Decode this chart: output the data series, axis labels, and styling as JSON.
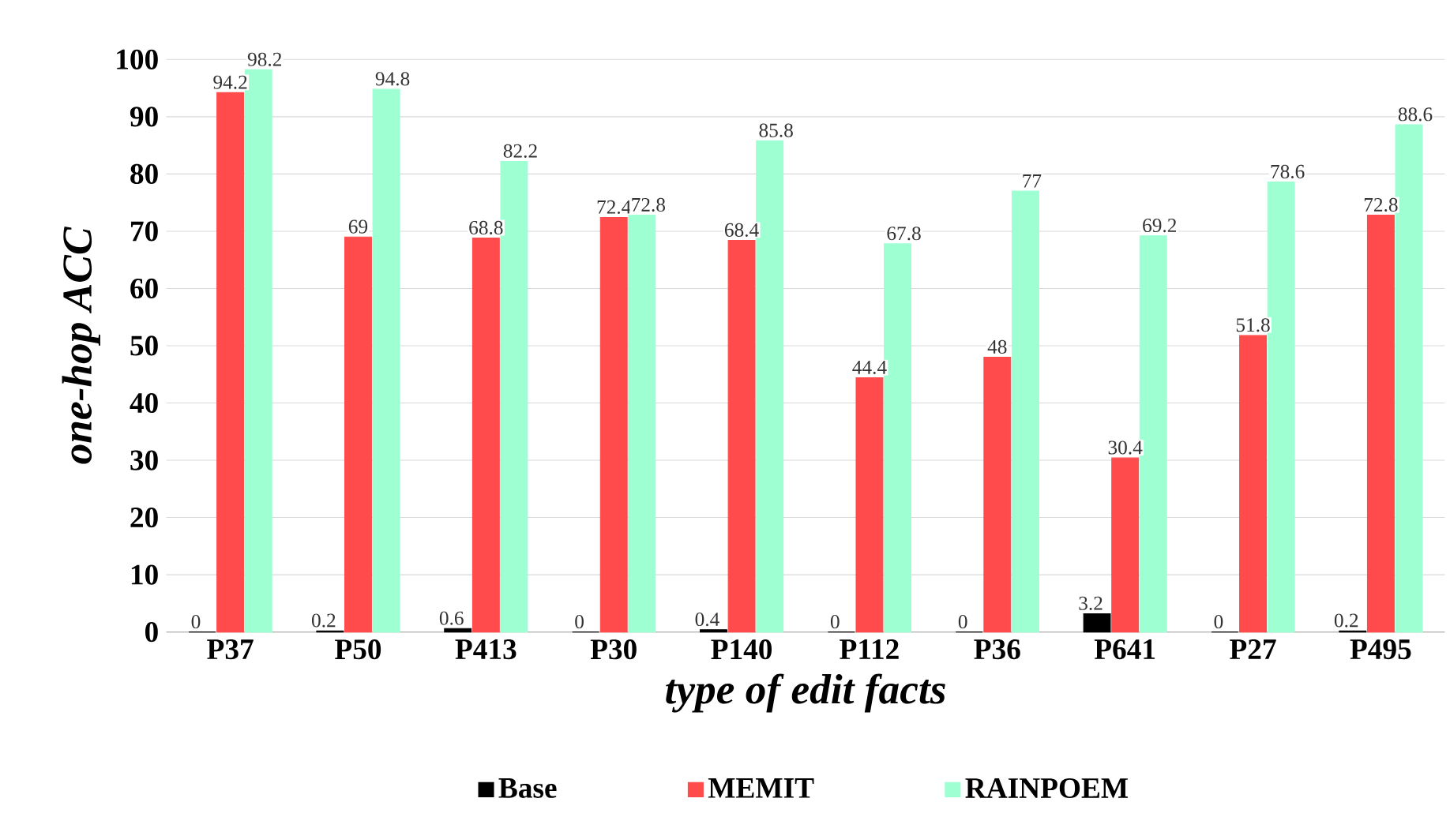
{
  "chart_data": {
    "type": "bar",
    "xlabel": "type of edit facts",
    "ylabel": "one-hop ACC",
    "categories": [
      "P37",
      "P50",
      "P413",
      "P30",
      "P140",
      "P112",
      "P36",
      "P641",
      "P27",
      "P495"
    ],
    "series": [
      {
        "name": "Base",
        "color": "#000000",
        "values": [
          0,
          0.2,
          0.6,
          0,
          0.4,
          0,
          0,
          3.2,
          0,
          0.2
        ]
      },
      {
        "name": "MEMIT",
        "color": "#ff4b4b",
        "values": [
          94.2,
          69,
          68.8,
          72.4,
          68.4,
          44.4,
          48,
          30.4,
          51.8,
          72.8
        ]
      },
      {
        "name": "RAINPOEM",
        "color": "#9dffd2",
        "values": [
          98.2,
          94.8,
          82.2,
          72.8,
          85.8,
          67.8,
          77,
          69.2,
          78.6,
          88.6
        ]
      }
    ],
    "ylim": [
      0,
      100
    ],
    "yticks": [
      0,
      10,
      20,
      30,
      40,
      50,
      60,
      70,
      80,
      90,
      100
    ],
    "grid": "y",
    "legend": "bottom",
    "data_labels": true
  }
}
